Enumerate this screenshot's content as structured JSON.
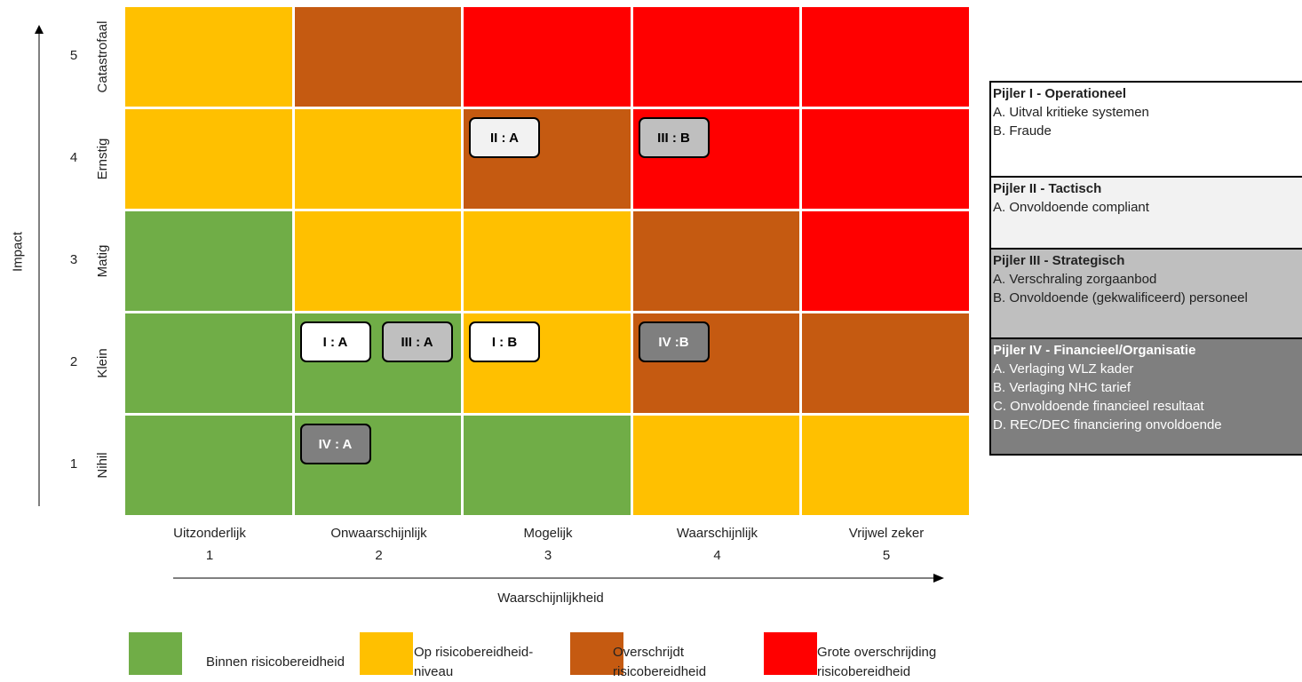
{
  "colors": {
    "green": "#70AD47",
    "yellow": "#FFC000",
    "orange": "#C55A11",
    "red": "#FF0000",
    "tag_white": "#FFFFFF",
    "tag_light": "#F2F2F2",
    "tag_gray": "#BFBFBF",
    "tag_dark": "#7F7F7F"
  },
  "y_axis": {
    "title": "Impact",
    "levels": [
      {
        "label": "Catastrofaal",
        "number": "5"
      },
      {
        "label": "Ernstig",
        "number": "4"
      },
      {
        "label": "Matig",
        "number": "3"
      },
      {
        "label": "Klein",
        "number": "2"
      },
      {
        "label": "Nihil",
        "number": "1"
      }
    ]
  },
  "x_axis": {
    "title": "Waarschijnlijkheid",
    "levels": [
      {
        "label": "Uitzonderlijk",
        "number": "1"
      },
      {
        "label": "Onwaarschijnlijk",
        "number": "2"
      },
      {
        "label": "Mogelijk",
        "number": "3"
      },
      {
        "label": "Waarschijnlijk",
        "number": "4"
      },
      {
        "label": "Vrijwel zeker",
        "number": "5"
      }
    ]
  },
  "matrix": [
    [
      "yellow",
      "orange",
      "red",
      "red",
      "red"
    ],
    [
      "yellow",
      "yellow",
      "orange",
      "red",
      "red"
    ],
    [
      "green",
      "yellow",
      "yellow",
      "orange",
      "red"
    ],
    [
      "green",
      "green",
      "yellow",
      "orange",
      "orange"
    ],
    [
      "green",
      "green",
      "green",
      "yellow",
      "yellow"
    ]
  ],
  "risk_tags": [
    {
      "text": "II : A",
      "impact": 4,
      "likelihood": 3,
      "slot": 0,
      "style": "tag_light"
    },
    {
      "text": "III : B",
      "impact": 4,
      "likelihood": 4,
      "slot": 0,
      "style": "tag_gray"
    },
    {
      "text": "I : A",
      "impact": 2,
      "likelihood": 2,
      "slot": 0,
      "style": "tag_white"
    },
    {
      "text": "III : A",
      "impact": 2,
      "likelihood": 2,
      "slot": 1,
      "style": "tag_gray"
    },
    {
      "text": "I : B",
      "impact": 2,
      "likelihood": 3,
      "slot": 0,
      "style": "tag_white"
    },
    {
      "text": "IV :B",
      "impact": 2,
      "likelihood": 4,
      "slot": 0,
      "style": "tag_dark"
    },
    {
      "text": "IV : A",
      "impact": 1,
      "likelihood": 2,
      "slot": 0,
      "style": "tag_dark"
    }
  ],
  "legend": [
    {
      "color": "green",
      "text": "Binnen risicobereidheid"
    },
    {
      "color": "yellow",
      "text": "Op risicobereidheid-niveau"
    },
    {
      "color": "orange",
      "text": "Overschrijdt risicobereidheid"
    },
    {
      "color": "red",
      "text": "Grote overschrijding risicobereidheid"
    }
  ],
  "pillars": [
    {
      "title": "Pijler I - Operationeel",
      "bg": "#FFFFFF",
      "fg": "#222222",
      "items": [
        "A. Uitval kritieke systemen",
        "B. Fraude"
      ]
    },
    {
      "title": "Pijler II - Tactisch",
      "bg": "#F2F2F2",
      "fg": "#222222",
      "items": [
        "A. Onvoldoende compliant"
      ]
    },
    {
      "title": "Pijler III - Strategisch",
      "bg": "#BFBFBF",
      "fg": "#222222",
      "items": [
        "A. Verschraling zorgaanbod",
        "B. Onvoldoende (gekwalificeerd) personeel"
      ]
    },
    {
      "title": "Pijler IV - Financieel/Organisatie",
      "bg": "#7F7F7F",
      "fg": "#FFFFFF",
      "items": [
        "A. Verlaging WLZ kader",
        "B. Verlaging NHC tarief",
        "C. Onvoldoende financieel resultaat",
        "D. REC/DEC financiering onvoldoende"
      ]
    }
  ]
}
